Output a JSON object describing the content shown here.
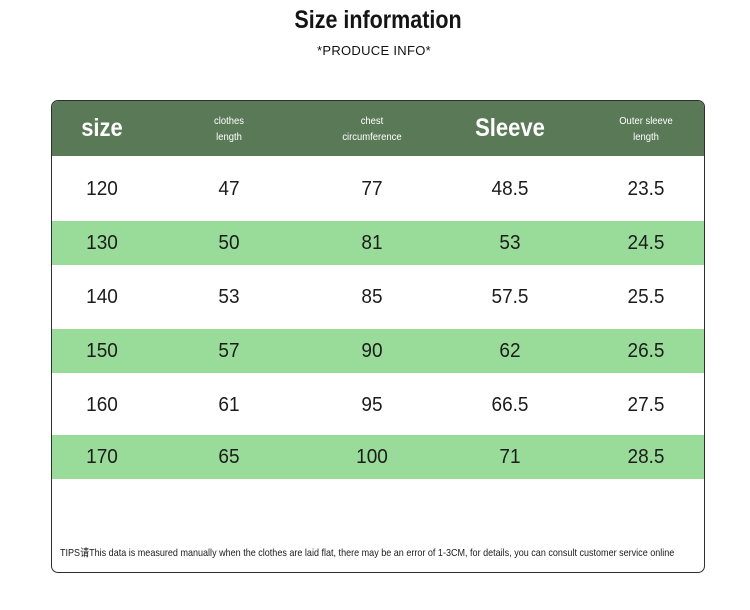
{
  "header": {
    "title": "Size information",
    "subtitle": "*PRODUCE INFO*"
  },
  "table": {
    "columns": [
      {
        "label": "size",
        "lines": [
          "size"
        ]
      },
      {
        "label": "clothes length",
        "lines": [
          "clothes",
          "length"
        ]
      },
      {
        "label": "chest circumference",
        "lines": [
          "chest",
          "circumference"
        ]
      },
      {
        "label": "Sleeve",
        "lines": [
          "Sleeve"
        ]
      },
      {
        "label": "Outer sleeve length",
        "lines": [
          "Outer sleeve",
          "length"
        ]
      }
    ],
    "rows": [
      [
        "120",
        "47",
        "77",
        "48.5",
        "23.5"
      ],
      [
        "130",
        "50",
        "81",
        "53",
        "24.5"
      ],
      [
        "140",
        "53",
        "85",
        "57.5",
        "25.5"
      ],
      [
        "150",
        "57",
        "90",
        "62",
        "26.5"
      ],
      [
        "160",
        "61",
        "95",
        "66.5",
        "27.5"
      ],
      [
        "170",
        "65",
        "100",
        "71",
        "28.5"
      ]
    ]
  },
  "tips": "TIPS请This data is measured manually when the clothes are laid flat, there may be an error of 1-3CM, for details, you can consult customer service online",
  "colors": {
    "header_bg": "#5a7a57",
    "stripe_green": "#99dc99",
    "header_text": "#ffffff"
  }
}
